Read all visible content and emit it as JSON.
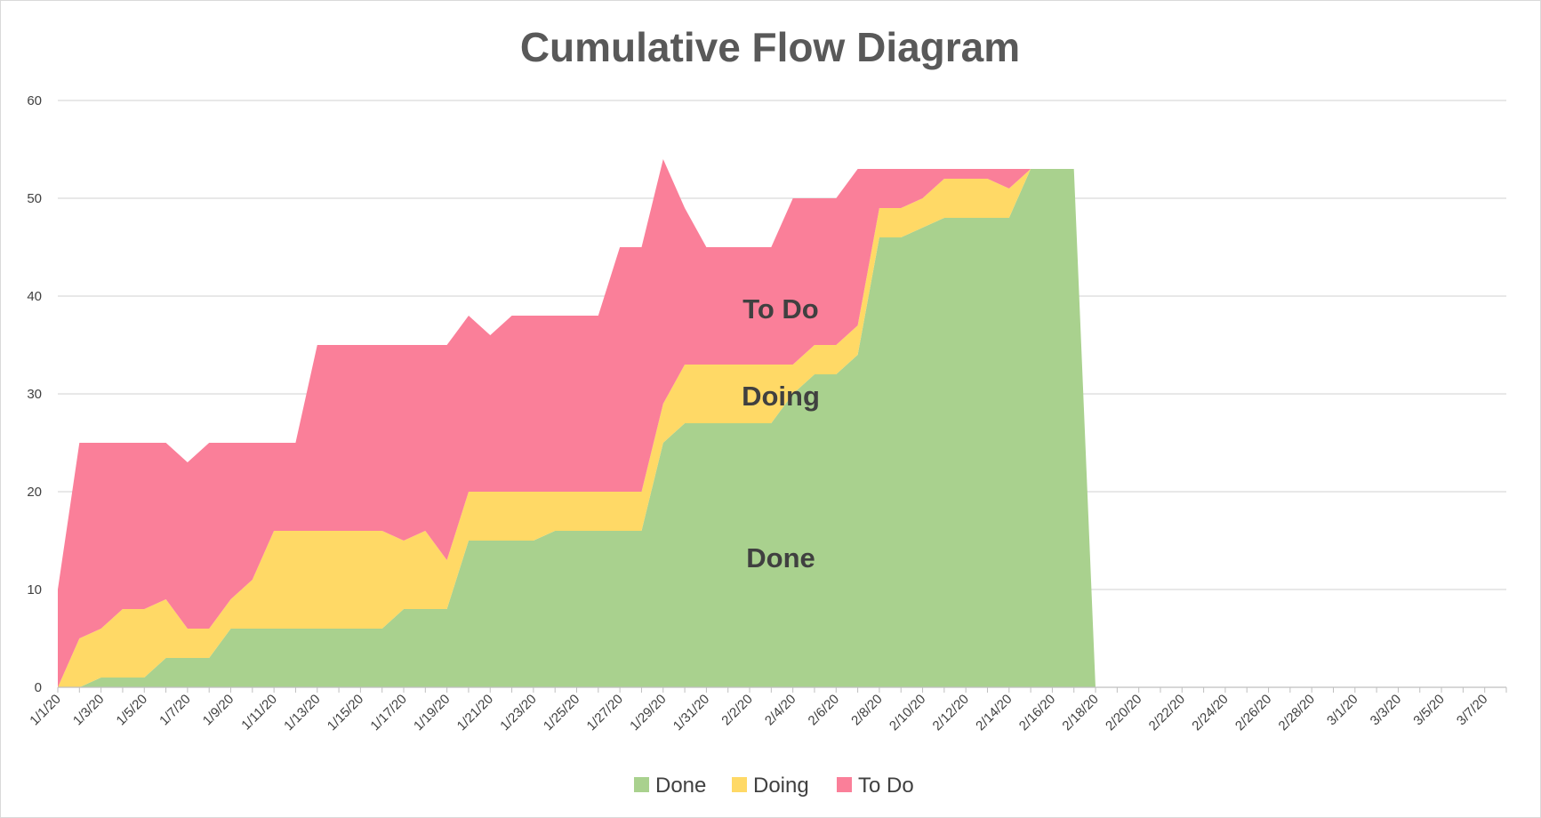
{
  "chart_data": {
    "type": "area",
    "stacked": true,
    "title": "Cumulative Flow Diagram",
    "xlabel": "",
    "ylabel": "",
    "ylim": [
      0,
      60
    ],
    "yticks": [
      0,
      10,
      20,
      30,
      40,
      50,
      60
    ],
    "grid": true,
    "legend_position": "bottom",
    "date_range": [
      "1/1/20",
      "3/8/20"
    ],
    "xtick_labels": [
      "1/1/20",
      "1/3/20",
      "1/5/20",
      "1/7/20",
      "1/9/20",
      "1/11/20",
      "1/13/20",
      "1/15/20",
      "1/17/20",
      "1/19/20",
      "1/21/20",
      "1/23/20",
      "1/25/20",
      "1/27/20",
      "1/29/20",
      "1/31/20",
      "2/2/20",
      "2/4/20",
      "2/6/20",
      "2/8/20",
      "2/10/20",
      "2/12/20",
      "2/14/20",
      "2/16/20",
      "2/18/20",
      "2/20/20",
      "2/22/20",
      "2/24/20",
      "2/26/20",
      "2/28/20",
      "3/1/20",
      "3/3/20",
      "3/5/20",
      "3/7/20"
    ],
    "x": [
      "1/1/20",
      "1/2/20",
      "1/3/20",
      "1/4/20",
      "1/5/20",
      "1/6/20",
      "1/7/20",
      "1/8/20",
      "1/9/20",
      "1/10/20",
      "1/11/20",
      "1/12/20",
      "1/13/20",
      "1/14/20",
      "1/15/20",
      "1/16/20",
      "1/17/20",
      "1/18/20",
      "1/19/20",
      "1/20/20",
      "1/21/20",
      "1/22/20",
      "1/23/20",
      "1/24/20",
      "1/25/20",
      "1/26/20",
      "1/27/20",
      "1/28/20",
      "1/29/20",
      "1/30/20",
      "1/31/20",
      "2/1/20",
      "2/2/20",
      "2/3/20",
      "2/4/20",
      "2/5/20",
      "2/6/20",
      "2/7/20",
      "2/8/20",
      "2/9/20",
      "2/10/20",
      "2/11/20",
      "2/12/20",
      "2/13/20",
      "2/14/20",
      "2/15/20",
      "2/16/20",
      "2/17/20",
      "2/18/20"
    ],
    "series": [
      {
        "name": "Done",
        "color": "#a9d18e",
        "values": [
          0,
          0,
          1,
          1,
          1,
          3,
          3,
          3,
          6,
          6,
          6,
          6,
          6,
          6,
          6,
          6,
          8,
          8,
          8,
          15,
          15,
          15,
          15,
          16,
          16,
          16,
          16,
          16,
          25,
          27,
          27,
          27,
          27,
          27,
          30,
          32,
          32,
          34,
          46,
          46,
          47,
          48,
          48,
          48,
          48,
          53,
          53,
          53,
          0
        ]
      },
      {
        "name": "Doing",
        "color": "#ffd966",
        "values": [
          0,
          5,
          5,
          7,
          7,
          6,
          3,
          3,
          3,
          5,
          10,
          10,
          10,
          10,
          10,
          10,
          7,
          8,
          5,
          5,
          5,
          5,
          5,
          4,
          4,
          4,
          4,
          4,
          4,
          6,
          6,
          6,
          6,
          6,
          3,
          3,
          3,
          3,
          3,
          3,
          3,
          4,
          4,
          4,
          3,
          0,
          0,
          0,
          0
        ]
      },
      {
        "name": "To Do",
        "color": "#fa7f99",
        "values": [
          10,
          20,
          19,
          17,
          17,
          16,
          17,
          19,
          16,
          14,
          9,
          9,
          19,
          19,
          19,
          19,
          20,
          19,
          22,
          18,
          16,
          18,
          18,
          18,
          18,
          18,
          25,
          25,
          25,
          16,
          12,
          12,
          12,
          12,
          17,
          15,
          15,
          16,
          4,
          4,
          3,
          1,
          1,
          1,
          2,
          0,
          0,
          0,
          0
        ]
      }
    ],
    "annotations": [
      "To Do",
      "Doing",
      "Done"
    ]
  }
}
